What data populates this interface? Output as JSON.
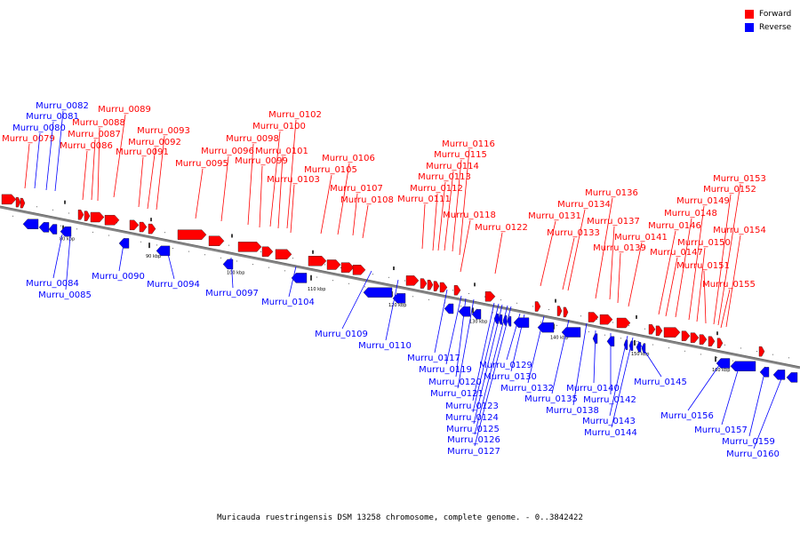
{
  "colors": {
    "forward": "#ff0000",
    "reverse": "#0000ff",
    "backbone": "#888888",
    "tick": "#000000"
  },
  "legend": [
    {
      "label": "Forward",
      "color": "#ff0000"
    },
    {
      "label": "Reverse",
      "color": "#0000ff"
    }
  ],
  "caption": "Muricauda ruestringensis DSM 13258 chromosome, complete genome. - 0..3842422",
  "axis": {
    "ticks": [
      {
        "label": "80 kbp",
        "pos": 80
      },
      {
        "label": "90 kbp",
        "pos": 90
      },
      {
        "label": "100 kbp",
        "pos": 100
      },
      {
        "label": "110 kbp",
        "pos": 110
      },
      {
        "label": "120 kbp",
        "pos": 120
      },
      {
        "label": "130 kbp",
        "pos": 130
      },
      {
        "label": "140 kbp",
        "pos": 140
      },
      {
        "label": "150 kbp",
        "pos": 150
      },
      {
        "label": "160 kbp",
        "pos": 160
      }
    ]
  },
  "genes": {
    "forward": [
      "Murru_0079",
      "Murru_0086",
      "Murru_0087",
      "Murru_0088",
      "Murru_0089",
      "Murru_0091",
      "Murru_0092",
      "Murru_0093",
      "Murru_0095",
      "Murru_0096",
      "Murru_0098",
      "Murru_0099",
      "Murru_0100",
      "Murru_0101",
      "Murru_0102",
      "Murru_0103",
      "Murru_0105",
      "Murru_0106",
      "Murru_0107",
      "Murru_0108",
      "Murru_0111",
      "Murru_0112",
      "Murru_0113",
      "Murru_0114",
      "Murru_0115",
      "Murru_0116",
      "Murru_0118",
      "Murru_0122",
      "Murru_0131",
      "Murru_0133",
      "Murru_0134",
      "Murru_0136",
      "Murru_0137",
      "Murru_0139",
      "Murru_0141",
      "Murru_0146",
      "Murru_0147",
      "Murru_0148",
      "Murru_0149",
      "Murru_0150",
      "Murru_0151",
      "Murru_0152",
      "Murru_0153",
      "Murru_0154",
      "Murru_0155"
    ],
    "reverse": [
      "Murru_0080",
      "Murru_0081",
      "Murru_0082",
      "Murru_0084",
      "Murru_0085",
      "Murru_0090",
      "Murru_0094",
      "Murru_0097",
      "Murru_0104",
      "Murru_0109",
      "Murru_0110",
      "Murru_0117",
      "Murru_0119",
      "Murru_0120",
      "Murru_0121",
      "Murru_0123",
      "Murru_0124",
      "Murru_0125",
      "Murru_0126",
      "Murru_0127",
      "Murru_0129",
      "Murru_0130",
      "Murru_0132",
      "Murru_0135",
      "Murru_0138",
      "Murru_0140",
      "Murru_0142",
      "Murru_0143",
      "Murru_0144",
      "Murru_0145",
      "Murru_0156",
      "Murru_0157",
      "Murru_0159",
      "Murru_0160"
    ]
  }
}
